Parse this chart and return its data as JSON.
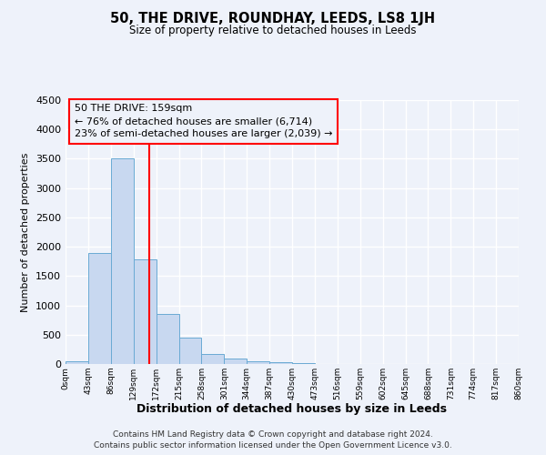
{
  "title": "50, THE DRIVE, ROUNDHAY, LEEDS, LS8 1JH",
  "subtitle": "Size of property relative to detached houses in Leeds",
  "xlabel": "Distribution of detached houses by size in Leeds",
  "ylabel": "Number of detached properties",
  "bar_color": "#c8d8f0",
  "bar_edge_color": "#6aaad4",
  "vline_color": "red",
  "vline_x": 159,
  "bin_edges": [
    0,
    43,
    86,
    129,
    172,
    215,
    258,
    301,
    344,
    387,
    430,
    473,
    516,
    559,
    602,
    645,
    688,
    731,
    774,
    817,
    860
  ],
  "bar_heights": [
    50,
    1900,
    3500,
    1780,
    850,
    450,
    175,
    90,
    50,
    25,
    10,
    0,
    0,
    0,
    0,
    0,
    0,
    0,
    0,
    0
  ],
  "ylim": [
    0,
    4500
  ],
  "yticks": [
    0,
    500,
    1000,
    1500,
    2000,
    2500,
    3000,
    3500,
    4000,
    4500
  ],
  "annotation_title": "50 THE DRIVE: 159sqm",
  "annotation_line1": "← 76% of detached houses are smaller (6,714)",
  "annotation_line2": "23% of semi-detached houses are larger (2,039) →",
  "annotation_box_color": "red",
  "footer_line1": "Contains HM Land Registry data © Crown copyright and database right 2024.",
  "footer_line2": "Contains public sector information licensed under the Open Government Licence v3.0.",
  "background_color": "#eef2fa",
  "grid_color": "white"
}
